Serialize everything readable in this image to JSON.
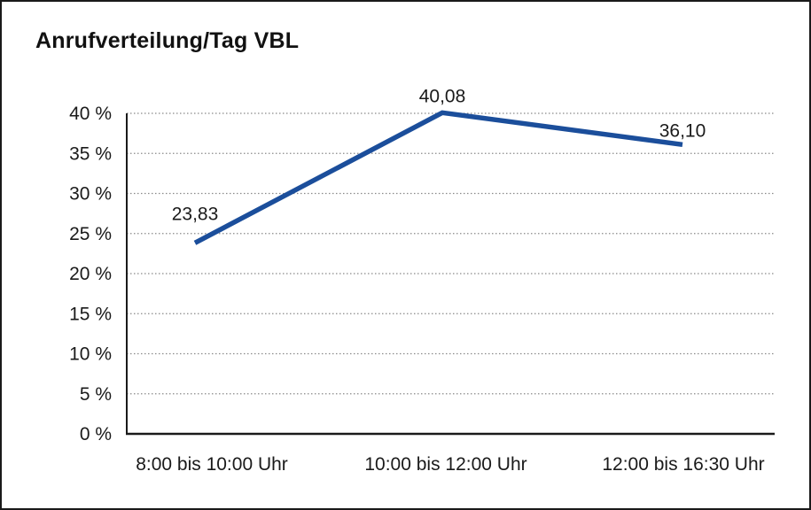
{
  "chart_data": {
    "type": "line",
    "title": "Anrufverteilung/Tag VBL",
    "categories": [
      "8:00 bis 10:00 Uhr",
      "10:00 bis 12:00 Uhr",
      "12:00 bis 16:30 Uhr"
    ],
    "values": [
      23.83,
      40.08,
      36.1
    ],
    "point_labels": [
      "23,83",
      "40,08",
      "36,10"
    ],
    "ylim": [
      0,
      40
    ],
    "ytick_step": 5,
    "ytick_labels": [
      "0 %",
      "5 %",
      "10 %",
      "15 %",
      "20 %",
      "25 %",
      "30 %",
      "35 %",
      "40 %"
    ],
    "grid": "dotted horizontal",
    "legend": "none",
    "line_color": "#1b4e9b",
    "axis_color": "#1a1a1a",
    "grid_color": "#8a8a8a"
  }
}
